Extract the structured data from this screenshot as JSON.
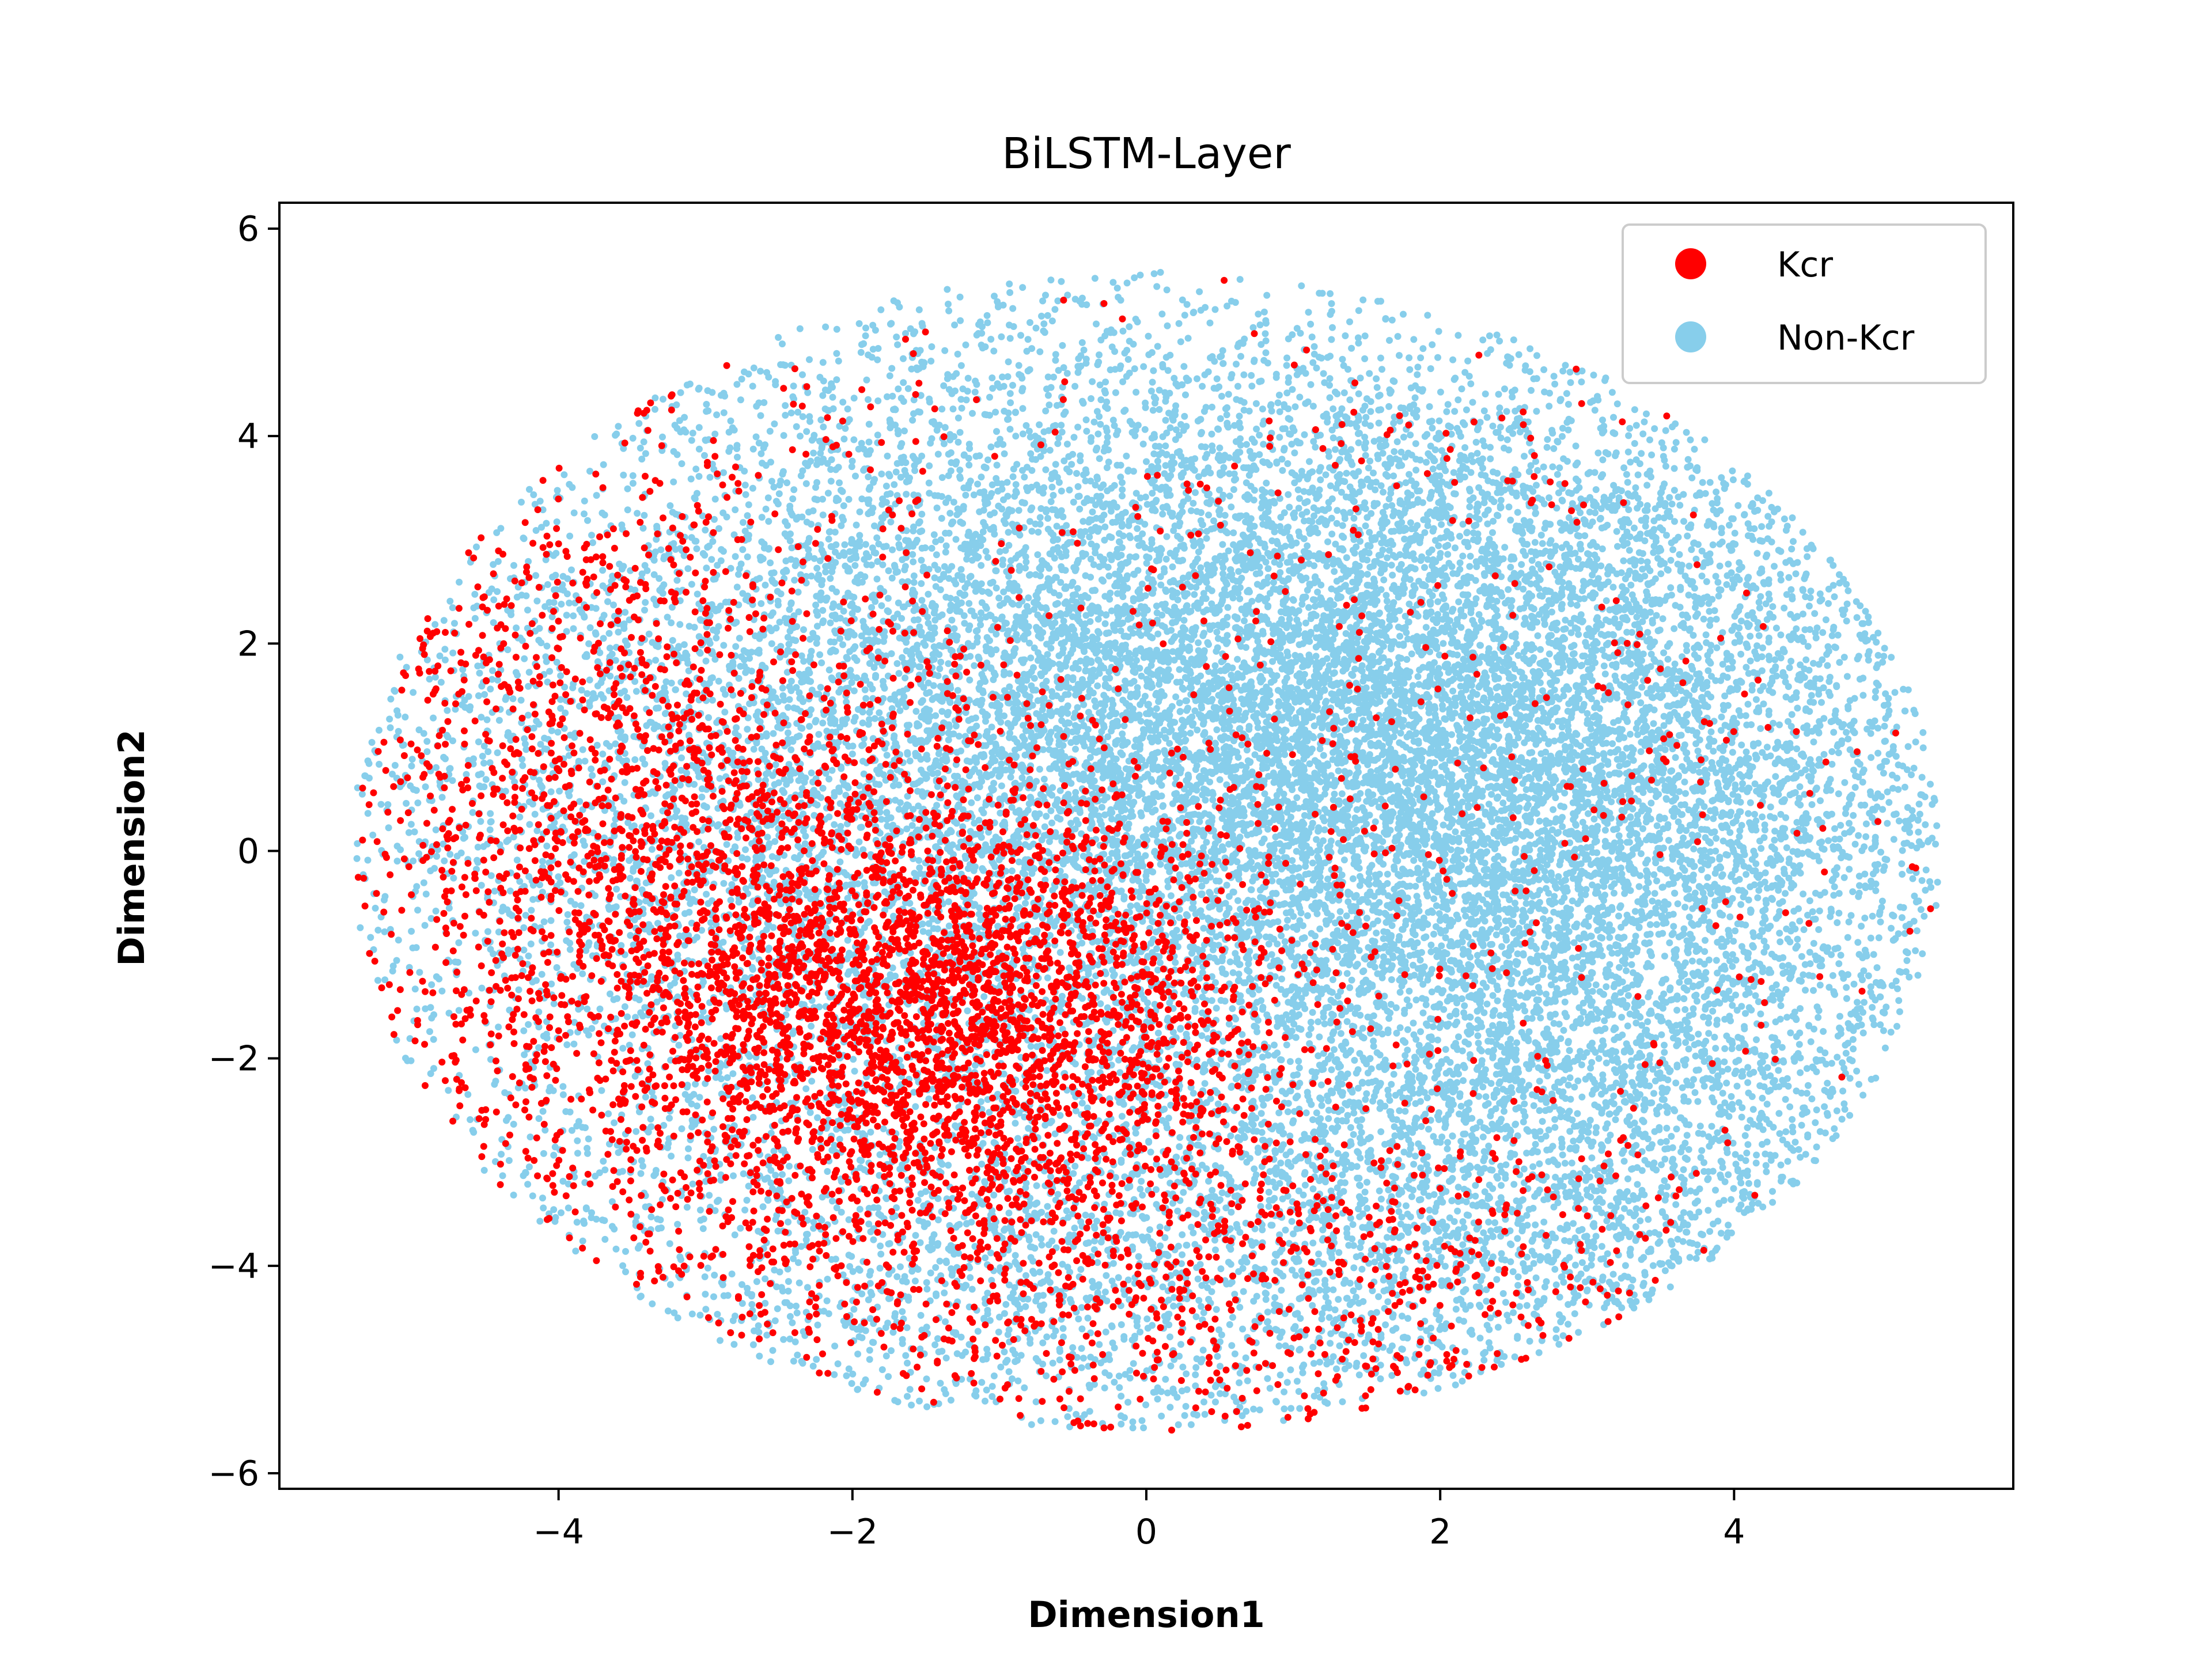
{
  "chart_data": {
    "type": "scatter",
    "title": "BiLSTM-Layer",
    "xlabel": "Dimension1",
    "ylabel": "Dimension2",
    "xlim": [
      -5.9,
      5.9
    ],
    "ylim": [
      -6.15,
      6.25
    ],
    "xticks": [
      -4,
      -2,
      0,
      2,
      4
    ],
    "yticks": [
      -6,
      -4,
      -2,
      0,
      2,
      4,
      6
    ],
    "xtick_labels": [
      "−4",
      "−2",
      "0",
      "2",
      "4"
    ],
    "ytick_labels": [
      "−6",
      "−4",
      "−2",
      "0",
      "2",
      "4",
      "6"
    ],
    "grid": false,
    "legend_position": "top-right",
    "series": [
      {
        "name": "Kcr",
        "color": "#ff0000",
        "approx_points": 6000,
        "clusters": [
          {
            "center": [
              -1.4,
              -1.6
            ],
            "spread": [
              1.2,
              1.2
            ],
            "weight": 0.55
          },
          {
            "center": [
              -3.6,
              0.3
            ],
            "spread": [
              1.1,
              1.8
            ],
            "weight": 0.25
          },
          {
            "center": [
              0.5,
              -4.2
            ],
            "spread": [
              2.0,
              0.9
            ],
            "weight": 0.12
          },
          {
            "center": [
              1.5,
              1.5
            ],
            "spread": [
              2.5,
              2.5
            ],
            "weight": 0.08
          }
        ]
      },
      {
        "name": "Non-Kcr",
        "color": "#87ceeb",
        "approx_points": 22000,
        "clusters": [
          {
            "center": [
              2.0,
              0.8
            ],
            "spread": [
              2.0,
              1.8
            ],
            "weight": 0.45
          },
          {
            "center": [
              0.0,
              2.5
            ],
            "spread": [
              2.5,
              1.8
            ],
            "weight": 0.2
          },
          {
            "center": [
              -2.5,
              0.0
            ],
            "spread": [
              1.8,
              2.0
            ],
            "weight": 0.15
          },
          {
            "center": [
              0.0,
              -4.0
            ],
            "spread": [
              2.5,
              1.1
            ],
            "weight": 0.1
          },
          {
            "center": [
              3.0,
              -2.5
            ],
            "spread": [
              1.5,
              1.5
            ],
            "weight": 0.1
          }
        ]
      }
    ],
    "boundary": {
      "center": [
        0.0,
        0.0
      ],
      "radii": [
        5.4,
        5.6
      ]
    }
  }
}
